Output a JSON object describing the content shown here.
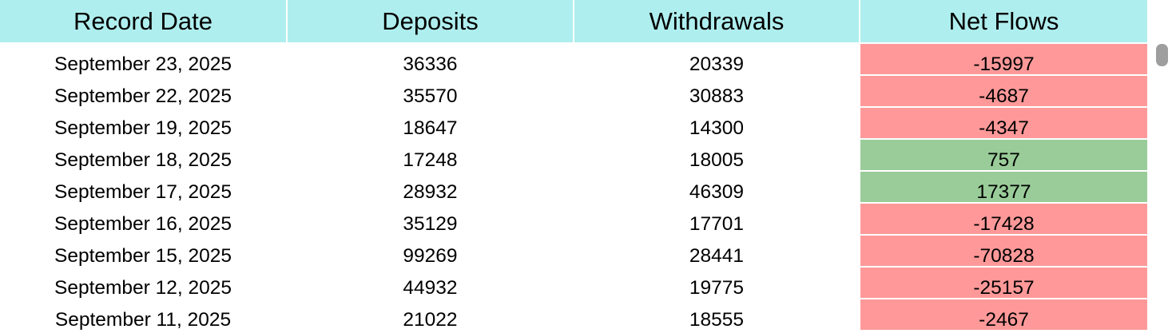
{
  "colors": {
    "header": "#afeeee",
    "negative": "#ff9999",
    "positive": "#99cc99"
  },
  "columns": [
    "Record Date",
    "Deposits",
    "Withdrawals",
    "Net Flows"
  ],
  "rows": [
    {
      "date": "September 23, 2025",
      "deposits": "36336",
      "withdrawals": "20339",
      "net": "-15997"
    },
    {
      "date": "September 22, 2025",
      "deposits": "35570",
      "withdrawals": "30883",
      "net": "-4687"
    },
    {
      "date": "September 19, 2025",
      "deposits": "18647",
      "withdrawals": "14300",
      "net": "-4347"
    },
    {
      "date": "September 18, 2025",
      "deposits": "17248",
      "withdrawals": "18005",
      "net": "757"
    },
    {
      "date": "September 17, 2025",
      "deposits": "28932",
      "withdrawals": "46309",
      "net": "17377"
    },
    {
      "date": "September 16, 2025",
      "deposits": "35129",
      "withdrawals": "17701",
      "net": "-17428"
    },
    {
      "date": "September 15, 2025",
      "deposits": "99269",
      "withdrawals": "28441",
      "net": "-70828"
    },
    {
      "date": "September 12, 2025",
      "deposits": "44932",
      "withdrawals": "19775",
      "net": "-25157"
    },
    {
      "date": "September 11, 2025",
      "deposits": "21022",
      "withdrawals": "18555",
      "net": "-2467"
    }
  ]
}
